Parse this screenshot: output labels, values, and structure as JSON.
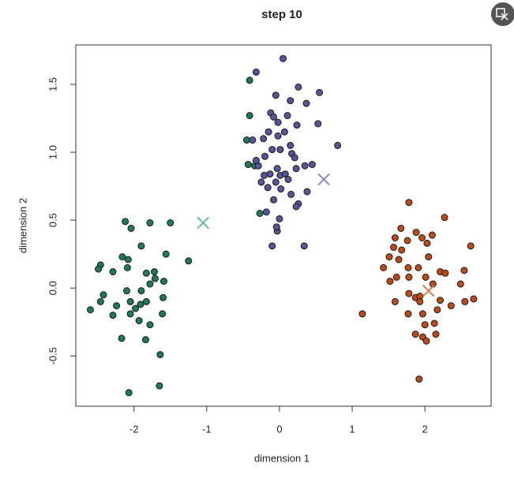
{
  "chart_data": {
    "type": "scatter",
    "title": "step 10",
    "x_label": "dimension 1",
    "y_label": "dimension 2",
    "xlim": [
      -2.8,
      2.91
    ],
    "ylim": [
      -0.87,
      1.79
    ],
    "xticks": [
      -2,
      -1,
      0,
      1,
      2
    ],
    "yticks": [
      -0.5,
      {
        "value": 0,
        "label": "0.0"
      },
      0.5,
      {
        "value": 1,
        "label": "1.0"
      },
      1.5
    ],
    "series": [
      {
        "color": "#1f7a5c",
        "marker": "o",
        "x": [
          -2.12,
          -2.04,
          -1.78,
          -1.5,
          -1.9,
          -1.56,
          -1.25,
          -2.16,
          -2.08,
          -2.46,
          -2.49,
          -2.29,
          -2.09,
          -1.83,
          -1.72,
          -1.59,
          -1.71,
          -1.78,
          -2.42,
          -2.1,
          -1.9,
          -1.6,
          -2.46,
          -2.24,
          -2.05,
          -1.91,
          -1.83,
          -1.98,
          -2.6,
          -2.29,
          -2.05,
          -1.61,
          -1.93,
          -1.78,
          -2.17,
          -1.84,
          -1.64,
          -1.65,
          -2.07,
          -0.41,
          -0.41,
          -0.45,
          -0.43,
          -0.34,
          -0.27
        ],
        "y": [
          0.49,
          0.44,
          0.48,
          0.48,
          0.31,
          0.25,
          0.2,
          0.23,
          0.21,
          0.17,
          0.14,
          0.12,
          0.15,
          0.11,
          0.12,
          0.05,
          0.07,
          0.03,
          -0.05,
          -0.02,
          -0.02,
          -0.07,
          -0.1,
          -0.13,
          -0.1,
          -0.12,
          -0.1,
          -0.15,
          -0.16,
          -0.2,
          -0.19,
          -0.19,
          -0.24,
          -0.27,
          -0.37,
          -0.38,
          -0.49,
          -0.72,
          -0.77,
          1.53,
          1.27,
          1.09,
          0.91,
          0.9,
          0.55
        ]
      },
      {
        "color": "#55559a",
        "marker": "o",
        "x": [
          0.05,
          -0.32,
          -0.05,
          0.26,
          0.55,
          0.15,
          0.37,
          -0.12,
          -0.08,
          -0.02,
          0.11,
          0.24,
          0.53,
          -0.15,
          -0.02,
          0.07,
          -0.22,
          -0.37,
          0.15,
          0.8,
          -0.1,
          0.01,
          0.17,
          0.21,
          -0.2,
          -0.32,
          -0.29,
          0.35,
          0.45,
          0.23,
          -0.03,
          -0.13,
          0.01,
          0.08,
          -0.21,
          0.12,
          -0.05,
          -0.25,
          -0.16,
          0.02,
          0.16,
          0.38,
          -0.08,
          0.26,
          0.23,
          -0.18,
          0,
          -0.03,
          -0.04,
          -0.1,
          0.34
        ],
        "y": [
          1.69,
          1.59,
          1.42,
          1.48,
          1.44,
          1.38,
          1.36,
          1.29,
          1.26,
          1.22,
          1.27,
          1.2,
          1.21,
          1.15,
          1.12,
          1.15,
          1.1,
          1.09,
          1.05,
          1.05,
          1.02,
          1.02,
          0.99,
          0.96,
          0.97,
          0.94,
          0.9,
          0.9,
          0.91,
          0.88,
          0.88,
          0.84,
          0.83,
          0.84,
          0.83,
          0.8,
          0.78,
          0.78,
          0.74,
          0.73,
          0.69,
          0.71,
          0.65,
          0.62,
          0.6,
          0.56,
          0.51,
          0.42,
          0.45,
          0.31,
          0.31
        ]
      },
      {
        "color": "#bd4a17",
        "marker": "o",
        "x": [
          1.78,
          2.27,
          1.67,
          1.88,
          2.1,
          1.59,
          1.76,
          1.96,
          1.57,
          1.68,
          2.03,
          2.63,
          1.64,
          2.05,
          1.51,
          1.43,
          1.77,
          1.91,
          2.21,
          2.28,
          2.54,
          1.61,
          1.78,
          2.01,
          1.52,
          2.11,
          2.49,
          1.78,
          1.87,
          1.93,
          1.59,
          1.93,
          2.21,
          2.55,
          2.67,
          2.36,
          1.14,
          1.77,
          1.97,
          2.17,
          2.13,
          2.0,
          1.87,
          2.15,
          1.97,
          2.02,
          1.92
        ],
        "y": [
          0.63,
          0.52,
          0.44,
          0.41,
          0.39,
          0.37,
          0.35,
          0.37,
          0.3,
          0.28,
          0.33,
          0.31,
          0.21,
          0.23,
          0.23,
          0.15,
          0.15,
          0.15,
          0.12,
          0.11,
          0.13,
          0.08,
          0.08,
          0.08,
          0.05,
          0.03,
          0.03,
          -0.04,
          -0.07,
          -0.06,
          -0.1,
          -0.1,
          -0.09,
          -0.1,
          -0.08,
          -0.13,
          -0.19,
          -0.19,
          -0.19,
          -0.16,
          -0.26,
          -0.27,
          -0.34,
          -0.34,
          -0.36,
          -0.39,
          -0.67
        ]
      },
      {
        "color": "#5fbf99",
        "marker": "x",
        "x": [
          -1.05
        ],
        "y": [
          0.48
        ]
      },
      {
        "color": "#8a88c4",
        "marker": "x",
        "x": [
          0.61
        ],
        "y": [
          0.8
        ]
      },
      {
        "color": "#d77a4c",
        "marker": "x",
        "x": [
          2.05
        ],
        "y": [
          -0.02
        ]
      }
    ]
  }
}
